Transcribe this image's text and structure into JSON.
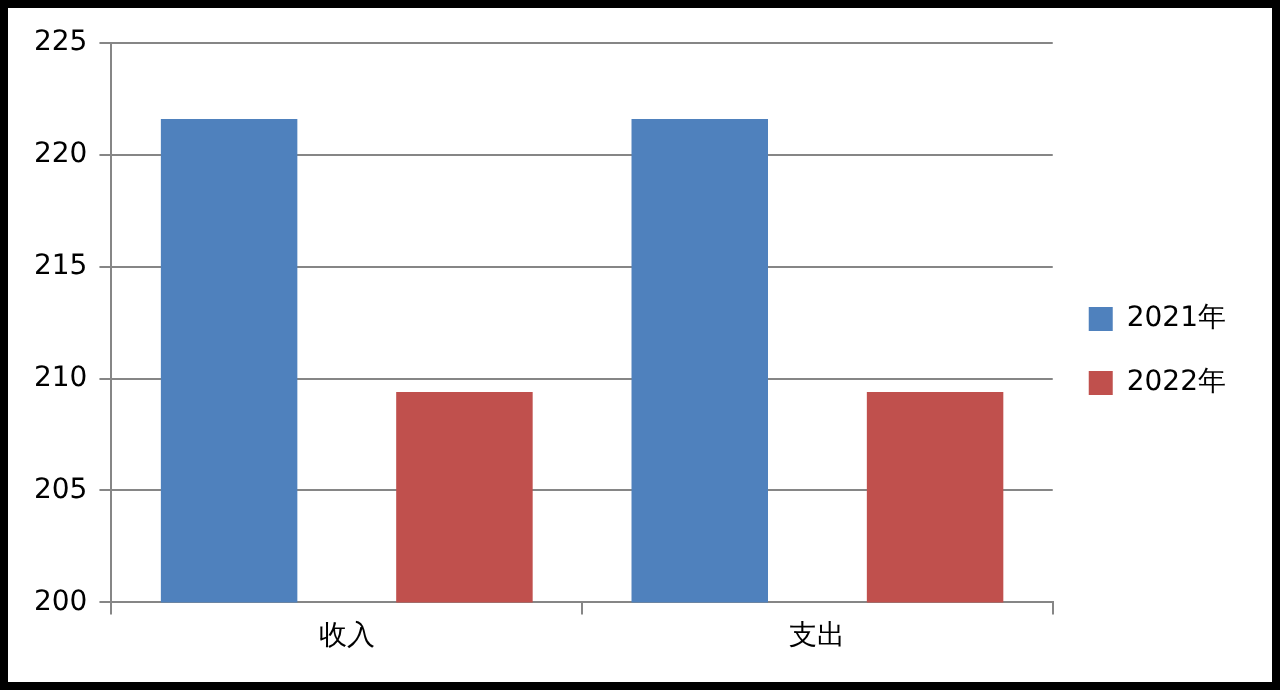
{
  "chart_data": {
    "type": "bar",
    "categories": [
      "收入",
      "支出"
    ],
    "series": [
      {
        "name": "2021年",
        "color": "#4f81bd",
        "values": [
          221.6,
          221.6
        ]
      },
      {
        "name": "2022年",
        "color": "#c0504d",
        "values": [
          209.4,
          209.4
        ]
      }
    ],
    "ylim": [
      200,
      225
    ],
    "yticks": [
      200,
      205,
      210,
      215,
      220,
      225
    ],
    "grid": "y",
    "legend": "right"
  }
}
